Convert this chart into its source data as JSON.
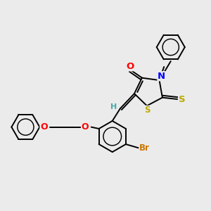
{
  "bg_color": "#ebebeb",
  "bond_color": "#000000",
  "atom_colors": {
    "O": "#ff0000",
    "N": "#0000ff",
    "S": "#bbaa00",
    "Br": "#cc7700",
    "H": "#44aaaa",
    "C": "#000000"
  },
  "lw": 1.4,
  "font_size": 8.5,
  "figsize": [
    3.0,
    3.0
  ],
  "dpi": 100
}
